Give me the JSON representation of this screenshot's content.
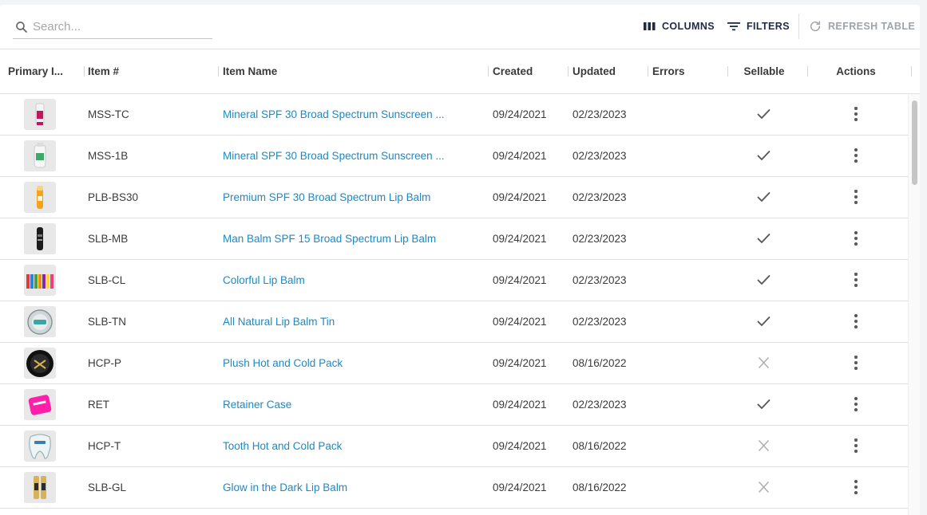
{
  "toolbar": {
    "search_placeholder": "Search...",
    "columns_label": "COLUMNS",
    "filters_label": "FILTERS",
    "refresh_label": "REFRESH TABLE"
  },
  "columns": {
    "primary_image": "Primary I...",
    "item_number": "Item #",
    "item_name": "Item Name",
    "created": "Created",
    "updated": "Updated",
    "errors": "Errors",
    "sellable": "Sellable",
    "actions": "Actions"
  },
  "rows": [
    {
      "item_number": "MSS-TC",
      "item_name": "Mineral SPF 30 Broad Spectrum Sunscreen ...",
      "created": "09/24/2021",
      "updated": "02/23/2023",
      "errors": "",
      "sellable": true,
      "thumb": "tube-red-icon"
    },
    {
      "item_number": "MSS-1B",
      "item_name": "Mineral SPF 30 Broad Spectrum Sunscreen ...",
      "created": "09/24/2021",
      "updated": "02/23/2023",
      "errors": "",
      "sellable": true,
      "thumb": "bottle-green-icon"
    },
    {
      "item_number": "PLB-BS30",
      "item_name": "Premium SPF 30 Broad Spectrum Lip Balm",
      "created": "09/24/2021",
      "updated": "02/23/2023",
      "errors": "",
      "sellable": true,
      "thumb": "lipbalm-orange-icon"
    },
    {
      "item_number": "SLB-MB",
      "item_name": "Man Balm SPF 15 Broad Spectrum Lip Balm",
      "created": "09/24/2021",
      "updated": "02/23/2023",
      "errors": "",
      "sellable": true,
      "thumb": "lipbalm-black-icon"
    },
    {
      "item_number": "SLB-CL",
      "item_name": "Colorful Lip Balm",
      "created": "09/24/2021",
      "updated": "02/23/2023",
      "errors": "",
      "sellable": true,
      "thumb": "lipbalm-multicolor-icon"
    },
    {
      "item_number": "SLB-TN",
      "item_name": "All Natural Lip Balm Tin",
      "created": "09/24/2021",
      "updated": "02/23/2023",
      "errors": "",
      "sellable": true,
      "thumb": "tin-icon"
    },
    {
      "item_number": "HCP-P",
      "item_name": "Plush Hot and Cold Pack",
      "created": "09/24/2021",
      "updated": "08/16/2022",
      "errors": "",
      "sellable": false,
      "thumb": "round-pack-icon"
    },
    {
      "item_number": "RET",
      "item_name": "Retainer Case",
      "created": "09/24/2021",
      "updated": "02/23/2023",
      "errors": "",
      "sellable": true,
      "thumb": "pink-case-icon"
    },
    {
      "item_number": "HCP-T",
      "item_name": "Tooth Hot and Cold Pack",
      "created": "09/24/2021",
      "updated": "08/16/2022",
      "errors": "",
      "sellable": false,
      "thumb": "tooth-pack-icon"
    },
    {
      "item_number": "SLB-GL",
      "item_name": "Glow in the Dark Lip Balm",
      "created": "09/24/2021",
      "updated": "08/16/2022",
      "errors": "",
      "sellable": false,
      "thumb": "lipbalm-glow-icon"
    }
  ],
  "colors": {
    "link": "#1a8ac9",
    "header_text": "#3a3a3a",
    "toolbar_text": "#1f2a44",
    "disabled": "#9ea3a8",
    "check": "#555555",
    "cross": "#b0b0b0"
  }
}
